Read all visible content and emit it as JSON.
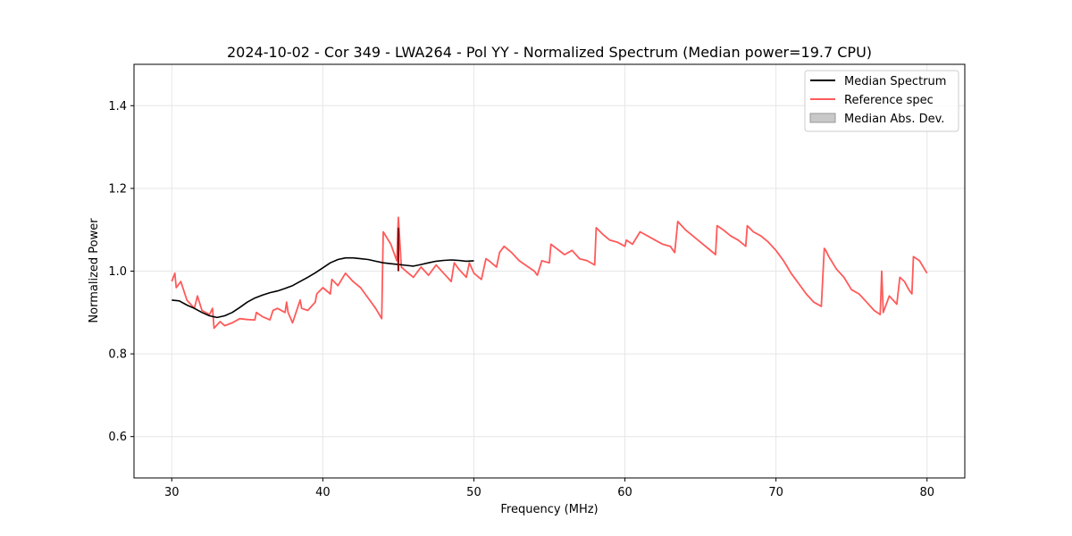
{
  "chart_data": {
    "type": "line",
    "title": "2024-10-02 - Cor 349 - LWA264 - Pol YY - Normalized Spectrum (Median power=19.7 CPU)",
    "xlabel": "Frequency (MHz)",
    "ylabel": "Normalized Power",
    "xlim": [
      27.5,
      82.5
    ],
    "ylim": [
      0.5,
      1.5
    ],
    "xticks": [
      30,
      40,
      50,
      60,
      70,
      80
    ],
    "yticks": [
      0.6,
      0.8,
      1.0,
      1.2,
      1.4
    ],
    "xtick_labels": [
      "30",
      "40",
      "50",
      "60",
      "70",
      "80"
    ],
    "ytick_labels": [
      "0.6",
      "0.8",
      "1.0",
      "1.2",
      "1.4"
    ],
    "grid": true,
    "legend_position": "top-right",
    "legend": [
      "Median Spectrum",
      "Reference spec",
      "Median Abs. Dev."
    ],
    "series": [
      {
        "name": "Median Spectrum",
        "color": "#000000",
        "x": [
          30.0,
          30.5,
          31.0,
          31.5,
          32.0,
          32.5,
          33.0,
          33.5,
          34.0,
          34.5,
          35.0,
          35.5,
          36.0,
          36.5,
          37.0,
          37.5,
          38.0,
          38.5,
          39.0,
          39.5,
          40.0,
          40.5,
          41.0,
          41.5,
          42.0,
          42.5,
          43.0,
          43.5,
          44.0,
          44.5,
          45.0,
          45.5,
          46.0,
          46.5,
          47.0,
          47.5,
          48.0,
          48.5,
          49.0,
          49.5,
          50.0
        ],
        "y": [
          0.93,
          0.928,
          0.918,
          0.91,
          0.9,
          0.892,
          0.888,
          0.892,
          0.9,
          0.912,
          0.925,
          0.935,
          0.942,
          0.948,
          0.952,
          0.958,
          0.965,
          0.975,
          0.985,
          0.996,
          1.008,
          1.02,
          1.028,
          1.032,
          1.032,
          1.03,
          1.028,
          1.024,
          1.02,
          1.018,
          1.016,
          1.014,
          1.012,
          1.016,
          1.02,
          1.024,
          1.026,
          1.027,
          1.026,
          1.024,
          1.025
        ]
      },
      {
        "name": "Reference spec",
        "color": "#ff5a5a",
        "x": [
          30.0,
          30.2,
          30.3,
          30.6,
          31.0,
          31.5,
          31.7,
          32.0,
          32.5,
          32.7,
          32.8,
          33.2,
          33.5,
          34.0,
          34.5,
          35.0,
          35.5,
          35.6,
          36.0,
          36.5,
          36.7,
          37.0,
          37.5,
          37.6,
          37.7,
          38.0,
          38.5,
          38.6,
          39.0,
          39.5,
          39.6,
          40.0,
          40.5,
          40.6,
          41.0,
          41.5,
          42.0,
          42.5,
          43.0,
          43.5,
          43.9,
          44.0,
          44.5,
          44.9,
          45.0,
          45.2,
          45.5,
          46.0,
          46.5,
          47.0,
          47.5,
          48.0,
          48.5,
          48.7,
          49.0,
          49.5,
          49.7,
          50.0,
          50.5,
          50.8,
          51.0,
          51.5,
          51.7,
          52.0,
          52.5,
          53.0,
          54.0,
          54.2,
          54.5,
          55.0,
          55.1,
          56.0,
          56.5,
          57.0,
          57.5,
          58.0,
          58.1,
          58.5,
          59.0,
          59.5,
          60.0,
          60.1,
          60.5,
          61.0,
          61.5,
          62.0,
          62.5,
          63.0,
          63.3,
          63.5,
          64.0,
          64.5,
          65.0,
          65.5,
          66.0,
          66.1,
          66.5,
          67.0,
          67.5,
          68.0,
          68.1,
          68.5,
          69.0,
          69.5,
          70.0,
          70.5,
          71.0,
          71.5,
          72.0,
          72.5,
          73.0,
          73.2,
          73.3,
          73.5,
          74.0,
          74.5,
          75.0,
          75.5,
          76.0,
          76.5,
          76.9,
          77.0,
          77.1,
          77.5,
          78.0,
          78.2,
          78.5,
          78.8,
          79.0,
          79.1,
          79.5,
          80.0
        ],
        "y": [
          0.975,
          0.995,
          0.96,
          0.975,
          0.93,
          0.91,
          0.94,
          0.905,
          0.895,
          0.91,
          0.862,
          0.878,
          0.868,
          0.875,
          0.885,
          0.883,
          0.882,
          0.9,
          0.89,
          0.882,
          0.905,
          0.91,
          0.9,
          0.925,
          0.9,
          0.875,
          0.93,
          0.91,
          0.905,
          0.925,
          0.945,
          0.96,
          0.945,
          0.98,
          0.965,
          0.995,
          0.975,
          0.96,
          0.935,
          0.91,
          0.885,
          1.095,
          1.065,
          1.025,
          1.13,
          1.01,
          1.0,
          0.985,
          1.01,
          0.99,
          1.015,
          0.995,
          0.975,
          1.02,
          1.005,
          0.985,
          1.02,
          0.995,
          0.98,
          1.03,
          1.025,
          1.01,
          1.045,
          1.06,
          1.045,
          1.025,
          1.0,
          0.99,
          1.025,
          1.02,
          1.065,
          1.04,
          1.05,
          1.03,
          1.025,
          1.015,
          1.105,
          1.09,
          1.075,
          1.07,
          1.06,
          1.075,
          1.065,
          1.095,
          1.085,
          1.075,
          1.065,
          1.06,
          1.045,
          1.12,
          1.1,
          1.085,
          1.07,
          1.055,
          1.04,
          1.11,
          1.1,
          1.085,
          1.075,
          1.06,
          1.11,
          1.095,
          1.085,
          1.07,
          1.05,
          1.025,
          0.995,
          0.97,
          0.945,
          0.925,
          0.915,
          1.055,
          1.05,
          1.035,
          1.005,
          0.985,
          0.955,
          0.945,
          0.925,
          0.905,
          0.895,
          1.0,
          0.9,
          0.94,
          0.92,
          0.985,
          0.975,
          0.955,
          0.945,
          1.035,
          1.025,
          0.995
        ]
      }
    ],
    "mad_band": {
      "name": "Median Abs. Dev.",
      "color": "#c8c8c8",
      "x": [],
      "y_low": [],
      "y_high": []
    },
    "annotations": [
      {
        "type": "spike",
        "x": 45.0,
        "y_low": 1.0,
        "y_high": 1.105,
        "color": "#8b0000"
      }
    ]
  }
}
